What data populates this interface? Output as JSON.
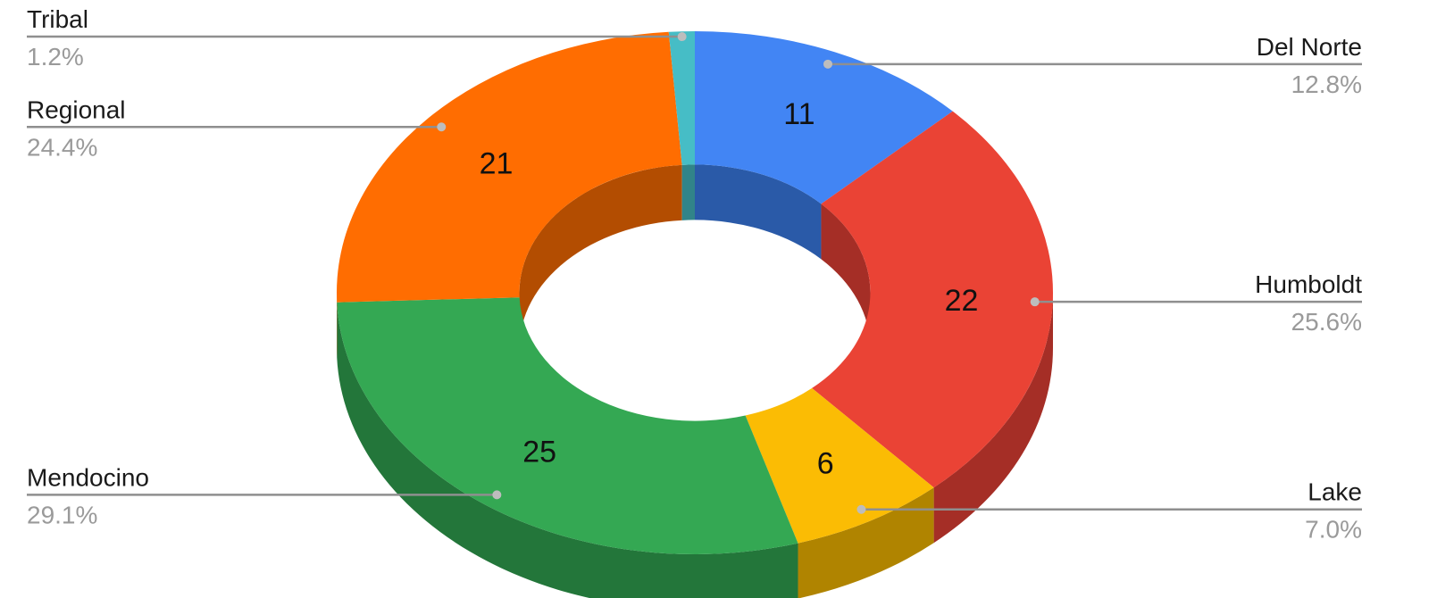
{
  "chart_data": {
    "type": "pie",
    "style": "3d-donut",
    "slices": [
      {
        "label": "Del Norte",
        "value": 11,
        "percent": "12.8%",
        "color": "#4285F4",
        "dark": "#2a5aa8"
      },
      {
        "label": "Humboldt",
        "value": 22,
        "percent": "25.6%",
        "color": "#EA4335",
        "dark": "#a52e26"
      },
      {
        "label": "Lake",
        "value": 6,
        "percent": "7.0%",
        "color": "#FBBC04",
        "dark": "#b08400"
      },
      {
        "label": "Mendocino",
        "value": 25,
        "percent": "29.1%",
        "color": "#34A853",
        "dark": "#23763a"
      },
      {
        "label": "Regional",
        "value": 21,
        "percent": "24.4%",
        "color": "#FF6D01",
        "dark": "#b34d01"
      },
      {
        "label": "Tribal",
        "value": 1,
        "percent": "1.2%",
        "color": "#46BDC6",
        "dark": "#318489"
      }
    ],
    "legend": "leader-lines",
    "title": ""
  }
}
